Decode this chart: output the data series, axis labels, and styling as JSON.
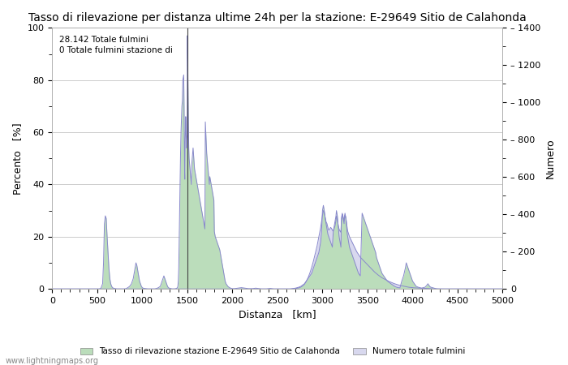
{
  "title": "Tasso di rilevazione per distanza ultime 24h per la stazione: E-29649 Sitio de Calahonda",
  "xlabel": "Distanza   [km]",
  "ylabel_left": "Percento   [%]",
  "ylabel_right": "Numero",
  "annotation_text": "28.142 Totale fulmini\n0 Totale fulmini stazione di",
  "legend_label1": "Tasso di rilevazione stazione E-29649 Sitio de Calahonda",
  "legend_label2": "Numero totale fulmini",
  "watermark": "www.lightningmaps.org",
  "xlim": [
    0,
    5000
  ],
  "ylim_left": [
    0,
    100
  ],
  "ylim_right": [
    0,
    1400
  ],
  "vline_x": 1500,
  "bg_color": "#ffffff",
  "grid_color": "#cccccc",
  "line_color": "#8888cc",
  "fill_green_color": "#bbddbb",
  "fill_blue_color": "#d8d8ee",
  "title_fontsize": 10,
  "axis_fontsize": 9,
  "tick_fontsize": 8,
  "detection_rate": [
    [
      0,
      0
    ],
    [
      50,
      0
    ],
    [
      100,
      0
    ],
    [
      150,
      0
    ],
    [
      200,
      0
    ],
    [
      250,
      0
    ],
    [
      300,
      0
    ],
    [
      350,
      0
    ],
    [
      400,
      0
    ],
    [
      450,
      0
    ],
    [
      500,
      0
    ],
    [
      520,
      0
    ],
    [
      540,
      0.2
    ],
    [
      560,
      2
    ],
    [
      570,
      10
    ],
    [
      580,
      25
    ],
    [
      590,
      28
    ],
    [
      600,
      27
    ],
    [
      610,
      20
    ],
    [
      620,
      14
    ],
    [
      630,
      8
    ],
    [
      640,
      4
    ],
    [
      650,
      2
    ],
    [
      660,
      1
    ],
    [
      670,
      0.5
    ],
    [
      680,
      0.3
    ],
    [
      700,
      0.1
    ],
    [
      720,
      0
    ],
    [
      740,
      0
    ],
    [
      760,
      0
    ],
    [
      780,
      0
    ],
    [
      800,
      0
    ],
    [
      820,
      0.1
    ],
    [
      840,
      0.5
    ],
    [
      860,
      1
    ],
    [
      880,
      2
    ],
    [
      900,
      4
    ],
    [
      920,
      8
    ],
    [
      930,
      10
    ],
    [
      940,
      9
    ],
    [
      950,
      7
    ],
    [
      960,
      5
    ],
    [
      970,
      3
    ],
    [
      980,
      2
    ],
    [
      990,
      1
    ],
    [
      1000,
      0.5
    ],
    [
      1010,
      0.3
    ],
    [
      1020,
      0.2
    ],
    [
      1040,
      0.1
    ],
    [
      1060,
      0
    ],
    [
      1080,
      0
    ],
    [
      1100,
      0
    ],
    [
      1120,
      0
    ],
    [
      1140,
      0
    ],
    [
      1160,
      0.2
    ],
    [
      1180,
      0.5
    ],
    [
      1200,
      1
    ],
    [
      1210,
      2
    ],
    [
      1220,
      3
    ],
    [
      1230,
      4
    ],
    [
      1240,
      5
    ],
    [
      1250,
      4
    ],
    [
      1260,
      3
    ],
    [
      1270,
      2
    ],
    [
      1280,
      1
    ],
    [
      1290,
      0.5
    ],
    [
      1300,
      0.3
    ],
    [
      1310,
      0.2
    ],
    [
      1320,
      0.1
    ],
    [
      1330,
      0
    ],
    [
      1340,
      0
    ],
    [
      1360,
      0
    ],
    [
      1380,
      0.2
    ],
    [
      1390,
      0.5
    ],
    [
      1395,
      1
    ],
    [
      1400,
      3
    ],
    [
      1405,
      8
    ],
    [
      1410,
      18
    ],
    [
      1415,
      30
    ],
    [
      1420,
      42
    ],
    [
      1425,
      52
    ],
    [
      1430,
      60
    ],
    [
      1435,
      65
    ],
    [
      1440,
      70
    ],
    [
      1445,
      72
    ],
    [
      1450,
      80
    ],
    [
      1455,
      81
    ],
    [
      1460,
      82
    ],
    [
      1462,
      76
    ],
    [
      1464,
      70
    ],
    [
      1466,
      60
    ],
    [
      1468,
      50
    ],
    [
      1470,
      45
    ],
    [
      1472,
      42
    ],
    [
      1474,
      50
    ],
    [
      1476,
      56
    ],
    [
      1478,
      60
    ],
    [
      1480,
      64
    ],
    [
      1482,
      66
    ],
    [
      1484,
      64
    ],
    [
      1486,
      60
    ],
    [
      1488,
      56
    ],
    [
      1490,
      54
    ],
    [
      1492,
      56
    ],
    [
      1494,
      57
    ],
    [
      1496,
      58
    ],
    [
      1498,
      59
    ],
    [
      1500,
      97
    ],
    [
      1502,
      94
    ],
    [
      1504,
      88
    ],
    [
      1506,
      80
    ],
    [
      1508,
      74
    ],
    [
      1510,
      68
    ],
    [
      1512,
      62
    ],
    [
      1514,
      58
    ],
    [
      1516,
      54
    ],
    [
      1518,
      52
    ],
    [
      1520,
      50
    ],
    [
      1525,
      48
    ],
    [
      1530,
      46
    ],
    [
      1535,
      44
    ],
    [
      1540,
      42
    ],
    [
      1545,
      40
    ],
    [
      1550,
      48
    ],
    [
      1555,
      50
    ],
    [
      1560,
      52
    ],
    [
      1562,
      53
    ],
    [
      1564,
      54
    ],
    [
      1566,
      53
    ],
    [
      1568,
      52
    ],
    [
      1570,
      51
    ],
    [
      1572,
      50
    ],
    [
      1574,
      49
    ],
    [
      1576,
      48
    ],
    [
      1578,
      47
    ],
    [
      1580,
      46
    ],
    [
      1585,
      45
    ],
    [
      1590,
      44
    ],
    [
      1595,
      43
    ],
    [
      1600,
      42
    ],
    [
      1605,
      41
    ],
    [
      1610,
      40
    ],
    [
      1615,
      39
    ],
    [
      1620,
      38
    ],
    [
      1625,
      37
    ],
    [
      1630,
      36
    ],
    [
      1635,
      35
    ],
    [
      1640,
      34
    ],
    [
      1645,
      33
    ],
    [
      1650,
      32
    ],
    [
      1655,
      31
    ],
    [
      1660,
      30
    ],
    [
      1665,
      29
    ],
    [
      1670,
      28
    ],
    [
      1675,
      27
    ],
    [
      1680,
      26
    ],
    [
      1685,
      25
    ],
    [
      1690,
      24
    ],
    [
      1695,
      23
    ],
    [
      1700,
      64
    ],
    [
      1705,
      60
    ],
    [
      1710,
      56
    ],
    [
      1715,
      52
    ],
    [
      1720,
      50
    ],
    [
      1725,
      48
    ],
    [
      1730,
      46
    ],
    [
      1735,
      44
    ],
    [
      1740,
      42
    ],
    [
      1745,
      40
    ],
    [
      1750,
      43
    ],
    [
      1755,
      42
    ],
    [
      1760,
      41
    ],
    [
      1765,
      40
    ],
    [
      1770,
      39
    ],
    [
      1775,
      38
    ],
    [
      1780,
      37
    ],
    [
      1785,
      36
    ],
    [
      1790,
      35
    ],
    [
      1795,
      34
    ],
    [
      1800,
      22
    ],
    [
      1805,
      21
    ],
    [
      1810,
      20
    ],
    [
      1820,
      19
    ],
    [
      1830,
      18
    ],
    [
      1840,
      17
    ],
    [
      1850,
      16
    ],
    [
      1860,
      15
    ],
    [
      1870,
      13
    ],
    [
      1880,
      11
    ],
    [
      1890,
      9
    ],
    [
      1900,
      7
    ],
    [
      1910,
      5
    ],
    [
      1920,
      3
    ],
    [
      1930,
      2
    ],
    [
      1940,
      1.5
    ],
    [
      1950,
      1
    ],
    [
      1960,
      0.7
    ],
    [
      1970,
      0.5
    ],
    [
      1980,
      0.3
    ],
    [
      1990,
      0.2
    ],
    [
      2000,
      0.1
    ],
    [
      2020,
      0.1
    ],
    [
      2040,
      0.2
    ],
    [
      2060,
      0.3
    ],
    [
      2080,
      0.4
    ],
    [
      2100,
      0.5
    ],
    [
      2120,
      0.4
    ],
    [
      2140,
      0.3
    ],
    [
      2160,
      0.2
    ],
    [
      2180,
      0.1
    ],
    [
      2200,
      0.1
    ],
    [
      2220,
      0.1
    ],
    [
      2240,
      0.2
    ],
    [
      2260,
      0.3
    ],
    [
      2280,
      0.2
    ],
    [
      2300,
      0.1
    ],
    [
      2320,
      0
    ],
    [
      2340,
      0
    ],
    [
      2360,
      0
    ],
    [
      2380,
      0
    ],
    [
      2400,
      0.1
    ],
    [
      2420,
      0.2
    ],
    [
      2440,
      0.1
    ],
    [
      2460,
      0
    ],
    [
      2480,
      0
    ],
    [
      2500,
      0
    ],
    [
      2520,
      0
    ],
    [
      2540,
      0
    ],
    [
      2560,
      0
    ],
    [
      2580,
      0
    ],
    [
      2600,
      0
    ],
    [
      2620,
      0
    ],
    [
      2640,
      0
    ],
    [
      2660,
      0.1
    ],
    [
      2680,
      0.2
    ],
    [
      2700,
      0.3
    ],
    [
      2720,
      0.5
    ],
    [
      2740,
      0.7
    ],
    [
      2760,
      1
    ],
    [
      2780,
      1.5
    ],
    [
      2800,
      2
    ],
    [
      2820,
      3
    ],
    [
      2840,
      4
    ],
    [
      2860,
      5
    ],
    [
      2880,
      6
    ],
    [
      2900,
      8
    ],
    [
      2920,
      10
    ],
    [
      2940,
      12
    ],
    [
      2950,
      13
    ],
    [
      2960,
      14
    ],
    [
      2970,
      16
    ],
    [
      2980,
      18
    ],
    [
      2990,
      22
    ],
    [
      3000,
      30
    ],
    [
      3010,
      32
    ],
    [
      3020,
      30
    ],
    [
      3030,
      27
    ],
    [
      3040,
      25
    ],
    [
      3050,
      23
    ],
    [
      3060,
      21
    ],
    [
      3070,
      20
    ],
    [
      3080,
      19
    ],
    [
      3090,
      18
    ],
    [
      3100,
      17
    ],
    [
      3110,
      16
    ],
    [
      3120,
      22
    ],
    [
      3130,
      24
    ],
    [
      3140,
      26
    ],
    [
      3150,
      28
    ],
    [
      3155,
      30
    ],
    [
      3160,
      29
    ],
    [
      3165,
      28
    ],
    [
      3170,
      26
    ],
    [
      3175,
      24
    ],
    [
      3180,
      22
    ],
    [
      3185,
      20
    ],
    [
      3190,
      19
    ],
    [
      3195,
      18
    ],
    [
      3200,
      17
    ],
    [
      3205,
      16
    ],
    [
      3210,
      27
    ],
    [
      3215,
      28
    ],
    [
      3220,
      29
    ],
    [
      3225,
      28
    ],
    [
      3230,
      27
    ],
    [
      3235,
      26
    ],
    [
      3240,
      25
    ],
    [
      3245,
      28
    ],
    [
      3250,
      29
    ],
    [
      3255,
      28
    ],
    [
      3260,
      27
    ],
    [
      3265,
      25
    ],
    [
      3270,
      23
    ],
    [
      3275,
      21
    ],
    [
      3280,
      20
    ],
    [
      3285,
      19
    ],
    [
      3290,
      18
    ],
    [
      3295,
      17
    ],
    [
      3300,
      16
    ],
    [
      3310,
      15
    ],
    [
      3320,
      14
    ],
    [
      3330,
      13
    ],
    [
      3340,
      12
    ],
    [
      3350,
      11
    ],
    [
      3360,
      10
    ],
    [
      3370,
      9
    ],
    [
      3380,
      8
    ],
    [
      3390,
      7
    ],
    [
      3400,
      6
    ],
    [
      3420,
      5
    ],
    [
      3440,
      29
    ],
    [
      3450,
      28
    ],
    [
      3460,
      27
    ],
    [
      3470,
      26
    ],
    [
      3480,
      25
    ],
    [
      3490,
      24
    ],
    [
      3500,
      23
    ],
    [
      3510,
      22
    ],
    [
      3520,
      21
    ],
    [
      3530,
      20
    ],
    [
      3540,
      19
    ],
    [
      3550,
      18
    ],
    [
      3560,
      17
    ],
    [
      3570,
      16
    ],
    [
      3580,
      15
    ],
    [
      3590,
      14
    ],
    [
      3600,
      12
    ],
    [
      3620,
      10
    ],
    [
      3640,
      8
    ],
    [
      3660,
      6
    ],
    [
      3680,
      5
    ],
    [
      3700,
      4
    ],
    [
      3720,
      3
    ],
    [
      3740,
      2.5
    ],
    [
      3760,
      2
    ],
    [
      3780,
      1.5
    ],
    [
      3800,
      1
    ],
    [
      3820,
      0.7
    ],
    [
      3840,
      0.5
    ],
    [
      3860,
      0.4
    ],
    [
      3880,
      3
    ],
    [
      3900,
      5
    ],
    [
      3920,
      8
    ],
    [
      3930,
      10
    ],
    [
      3940,
      9
    ],
    [
      3950,
      8
    ],
    [
      3960,
      7
    ],
    [
      3970,
      6
    ],
    [
      3980,
      5
    ],
    [
      3990,
      4
    ],
    [
      4000,
      3
    ],
    [
      4020,
      2
    ],
    [
      4040,
      1
    ],
    [
      4060,
      0.7
    ],
    [
      4080,
      0.5
    ],
    [
      4100,
      0.3
    ],
    [
      4120,
      0.5
    ],
    [
      4140,
      0.7
    ],
    [
      4160,
      1.5
    ],
    [
      4170,
      2
    ],
    [
      4180,
      1.5
    ],
    [
      4190,
      1
    ],
    [
      4200,
      0.7
    ],
    [
      4220,
      0.5
    ],
    [
      4240,
      0.3
    ],
    [
      4260,
      0.1
    ],
    [
      4280,
      0
    ],
    [
      4300,
      0
    ],
    [
      4350,
      0
    ],
    [
      4400,
      0
    ],
    [
      4450,
      0
    ],
    [
      4500,
      0
    ],
    [
      4550,
      0
    ],
    [
      4600,
      0
    ],
    [
      4650,
      0
    ],
    [
      4700,
      0
    ],
    [
      4750,
      0
    ],
    [
      4800,
      0
    ],
    [
      4850,
      0
    ],
    [
      4900,
      0
    ],
    [
      4950,
      0
    ],
    [
      5000,
      0
    ]
  ],
  "total_lightning": [
    [
      0,
      0
    ],
    [
      100,
      0
    ],
    [
      200,
      0
    ],
    [
      300,
      0
    ],
    [
      400,
      0
    ],
    [
      500,
      0
    ],
    [
      550,
      0
    ],
    [
      600,
      0
    ],
    [
      650,
      0
    ],
    [
      700,
      0
    ],
    [
      750,
      0
    ],
    [
      800,
      0
    ],
    [
      850,
      0
    ],
    [
      900,
      0
    ],
    [
      950,
      0
    ],
    [
      1000,
      0
    ],
    [
      1050,
      0
    ],
    [
      1100,
      0
    ],
    [
      1150,
      0
    ],
    [
      1200,
      0
    ],
    [
      1250,
      0
    ],
    [
      1300,
      0
    ],
    [
      1350,
      0
    ],
    [
      1400,
      0
    ],
    [
      1450,
      0
    ],
    [
      1500,
      0
    ],
    [
      1550,
      0
    ],
    [
      1600,
      0
    ],
    [
      1650,
      0
    ],
    [
      1680,
      0
    ],
    [
      1700,
      0
    ],
    [
      1750,
      0
    ],
    [
      1800,
      0
    ],
    [
      1850,
      0
    ],
    [
      1900,
      0
    ],
    [
      1950,
      0
    ],
    [
      2000,
      0
    ],
    [
      2050,
      0
    ],
    [
      2100,
      0
    ],
    [
      2150,
      0
    ],
    [
      2200,
      0
    ],
    [
      2250,
      0
    ],
    [
      2300,
      0
    ],
    [
      2350,
      0
    ],
    [
      2400,
      0
    ],
    [
      2450,
      0
    ],
    [
      2500,
      0
    ],
    [
      2550,
      0
    ],
    [
      2600,
      0
    ],
    [
      2650,
      0
    ],
    [
      2700,
      2
    ],
    [
      2720,
      4
    ],
    [
      2740,
      6
    ],
    [
      2760,
      10
    ],
    [
      2780,
      16
    ],
    [
      2800,
      25
    ],
    [
      2820,
      40
    ],
    [
      2840,
      60
    ],
    [
      2860,
      85
    ],
    [
      2880,
      115
    ],
    [
      2900,
      150
    ],
    [
      2920,
      190
    ],
    [
      2940,
      230
    ],
    [
      2960,
      280
    ],
    [
      2980,
      330
    ],
    [
      3000,
      395
    ],
    [
      3010,
      420
    ],
    [
      3020,
      410
    ],
    [
      3030,
      385
    ],
    [
      3040,
      360
    ],
    [
      3050,
      350
    ],
    [
      3060,
      330
    ],
    [
      3070,
      315
    ],
    [
      3080,
      320
    ],
    [
      3090,
      330
    ],
    [
      3100,
      325
    ],
    [
      3110,
      315
    ],
    [
      3120,
      310
    ],
    [
      3130,
      325
    ],
    [
      3140,
      340
    ],
    [
      3150,
      370
    ],
    [
      3155,
      390
    ],
    [
      3160,
      385
    ],
    [
      3165,
      370
    ],
    [
      3170,
      355
    ],
    [
      3175,
      340
    ],
    [
      3180,
      330
    ],
    [
      3185,
      320
    ],
    [
      3190,
      315
    ],
    [
      3195,
      310
    ],
    [
      3200,
      305
    ],
    [
      3205,
      315
    ],
    [
      3210,
      360
    ],
    [
      3215,
      385
    ],
    [
      3220,
      400
    ],
    [
      3225,
      395
    ],
    [
      3230,
      385
    ],
    [
      3235,
      375
    ],
    [
      3240,
      365
    ],
    [
      3245,
      380
    ],
    [
      3250,
      395
    ],
    [
      3255,
      390
    ],
    [
      3260,
      380
    ],
    [
      3265,
      365
    ],
    [
      3270,
      345
    ],
    [
      3275,
      325
    ],
    [
      3280,
      310
    ],
    [
      3290,
      295
    ],
    [
      3300,
      280
    ],
    [
      3320,
      260
    ],
    [
      3340,
      240
    ],
    [
      3360,
      220
    ],
    [
      3380,
      200
    ],
    [
      3400,
      185
    ],
    [
      3420,
      170
    ],
    [
      3440,
      160
    ],
    [
      3460,
      150
    ],
    [
      3480,
      140
    ],
    [
      3500,
      130
    ],
    [
      3520,
      120
    ],
    [
      3540,
      110
    ],
    [
      3560,
      100
    ],
    [
      3580,
      90
    ],
    [
      3600,
      82
    ],
    [
      3620,
      74
    ],
    [
      3640,
      67
    ],
    [
      3660,
      60
    ],
    [
      3680,
      55
    ],
    [
      3700,
      50
    ],
    [
      3720,
      45
    ],
    [
      3740,
      40
    ],
    [
      3760,
      36
    ],
    [
      3780,
      32
    ],
    [
      3800,
      28
    ],
    [
      3820,
      25
    ],
    [
      3840,
      22
    ],
    [
      3860,
      19
    ],
    [
      3880,
      17
    ],
    [
      3900,
      15
    ],
    [
      3920,
      13
    ],
    [
      3940,
      11
    ],
    [
      3960,
      9
    ],
    [
      3980,
      8
    ],
    [
      4000,
      7
    ],
    [
      4020,
      6
    ],
    [
      4040,
      5.5
    ],
    [
      4060,
      5
    ],
    [
      4080,
      4.5
    ],
    [
      4100,
      4
    ],
    [
      4120,
      3.5
    ],
    [
      4140,
      3
    ],
    [
      4160,
      2.5
    ],
    [
      4180,
      2
    ],
    [
      4200,
      1.5
    ],
    [
      4220,
      1
    ],
    [
      4240,
      0.7
    ],
    [
      4260,
      0.5
    ],
    [
      4280,
      0.3
    ],
    [
      4300,
      0.1
    ],
    [
      4350,
      0
    ],
    [
      4400,
      0
    ],
    [
      4450,
      0
    ],
    [
      4500,
      0
    ],
    [
      4550,
      0
    ],
    [
      4600,
      0
    ],
    [
      4650,
      0
    ],
    [
      4700,
      0
    ],
    [
      4750,
      0
    ],
    [
      4800,
      0
    ],
    [
      4850,
      0
    ],
    [
      4900,
      0
    ],
    [
      4950,
      0
    ],
    [
      5000,
      0
    ]
  ]
}
